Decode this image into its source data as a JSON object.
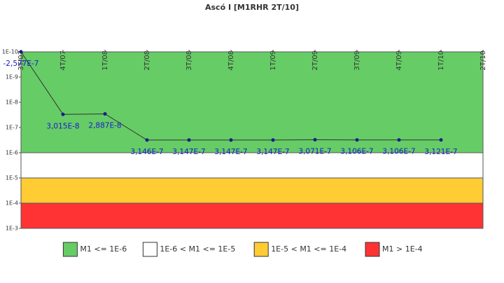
{
  "chart_data": {
    "type": "line",
    "title": "Ascó I [M1RHR 2T/10]",
    "categories": [
      "3T/07",
      "4T/07",
      "1T/08",
      "2T/08",
      "3T/08",
      "4T/08",
      "1T/09",
      "2T/09",
      "3T/09",
      "4T/09",
      "1T/10",
      "2T/10"
    ],
    "series": [
      {
        "name": "M1",
        "color": "#1a1a8c",
        "values": [
          -2.577e-07,
          3.015e-08,
          2.887e-08,
          3.146e-07,
          3.147e-07,
          3.147e-07,
          3.147e-07,
          3.071e-07,
          3.106e-07,
          3.106e-07,
          3.121e-07,
          null
        ],
        "value_labels": [
          "-2,577E-7",
          "3,015E-8",
          "2,887E-8",
          "3,146E-7",
          "3,147E-7",
          "3,147E-7",
          "3,147E-7",
          "3,071E-7",
          "3,106E-7",
          "3,106E-7",
          "3,121E-7",
          null
        ]
      }
    ],
    "ylim": [
      1e-10,
      0.001
    ],
    "ylog": true,
    "y_reversed": true,
    "yticks": [
      {
        "value": 1e-10,
        "label": "1E-10"
      },
      {
        "value": 1e-09,
        "label": "1E-9"
      },
      {
        "value": 1e-08,
        "label": "1E-8"
      },
      {
        "value": 1e-07,
        "label": "1E-7"
      },
      {
        "value": 1e-06,
        "label": "1E-6"
      },
      {
        "value": 1e-05,
        "label": "1E-5"
      },
      {
        "value": 0.0001,
        "label": "1E-4"
      },
      {
        "value": 0.001,
        "label": "1E-3"
      }
    ],
    "bands": [
      {
        "name": "M1 <= 1E-6",
        "from": 1e-10,
        "to": 1e-06,
        "color": "#66cc66"
      },
      {
        "name": "1E-6 < M1 <= 1E-5",
        "from": 1e-06,
        "to": 1e-05,
        "color": "#ffffff"
      },
      {
        "name": "1E-5 < M1 <= 1E-4",
        "from": 1e-05,
        "to": 0.0001,
        "color": "#ffcc33"
      },
      {
        "name": "M1 > 1E-4",
        "from": 0.0001,
        "to": 0.001,
        "color": "#ff3333"
      }
    ],
    "legend": "bottom"
  }
}
